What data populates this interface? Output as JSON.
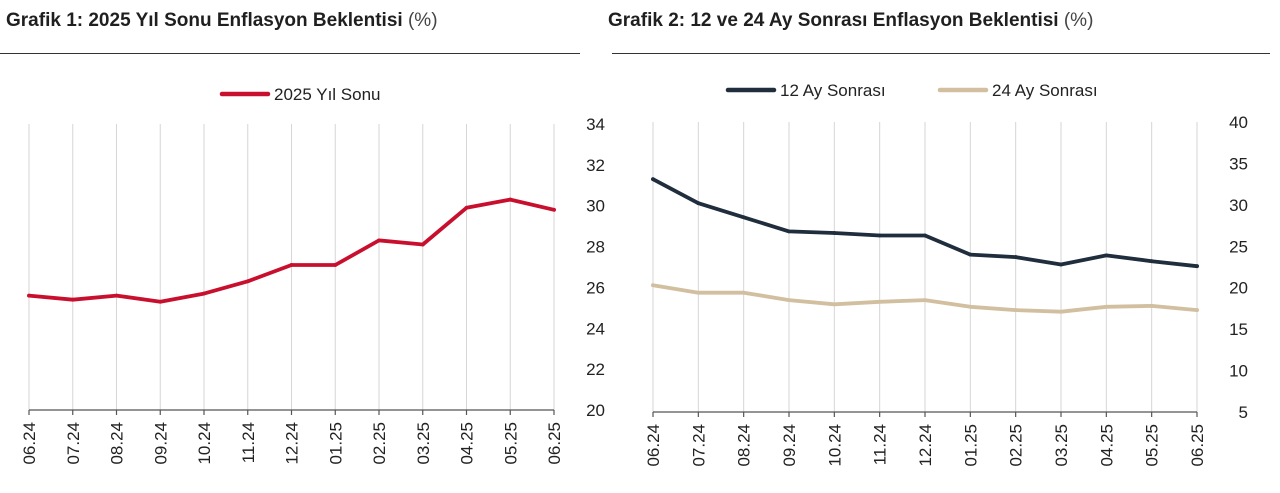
{
  "chart_data": [
    {
      "type": "line",
      "title": "Grafik 1: 2025 Yıl Sonu Enflasyon Beklentisi",
      "unit": "(%)",
      "categories": [
        "06.24",
        "07.24",
        "08.24",
        "09.24",
        "10.24",
        "11.24",
        "12.24",
        "01.25",
        "02.25",
        "03.25",
        "04.25",
        "05.25",
        "06.25"
      ],
      "series": [
        {
          "name": "2025 Yıl Sonu",
          "color": "#c8102e",
          "values": [
            25.6,
            25.4,
            25.6,
            25.3,
            25.7,
            26.3,
            27.1,
            27.1,
            28.3,
            28.1,
            29.9,
            30.3,
            29.8
          ]
        }
      ],
      "ylim": [
        20,
        34
      ],
      "yticks": [
        20,
        22,
        24,
        26,
        28,
        30,
        32,
        34
      ],
      "y_axis_side": "right",
      "grid": "vertical",
      "legend": "top-center"
    },
    {
      "type": "line",
      "title": "Grafik 2: 12 ve 24 Ay Sonrası Enflasyon Beklentisi",
      "unit": "(%)",
      "categories": [
        "06.24",
        "07.24",
        "08.24",
        "09.24",
        "10.24",
        "11.24",
        "12.24",
        "01.25",
        "02.25",
        "03.25",
        "04.25",
        "05.25",
        "06.25"
      ],
      "series": [
        {
          "name": "12 Ay Sonrası",
          "color": "#1f2d3d",
          "values": [
            33.1,
            30.2,
            28.5,
            26.8,
            26.6,
            26.3,
            26.3,
            24.0,
            23.7,
            22.8,
            23.9,
            23.2,
            22.6
          ]
        },
        {
          "name": "24 Ay Sonrası",
          "color": "#d2bfa0",
          "values": [
            20.3,
            19.4,
            19.4,
            18.5,
            18.0,
            18.3,
            18.5,
            17.7,
            17.3,
            17.1,
            17.7,
            17.8,
            17.3
          ]
        }
      ],
      "ylim": [
        5,
        40
      ],
      "yticks": [
        5,
        10,
        15,
        20,
        25,
        30,
        35,
        40
      ],
      "y_axis_side": "right",
      "grid": "vertical",
      "legend": "top-center"
    }
  ]
}
